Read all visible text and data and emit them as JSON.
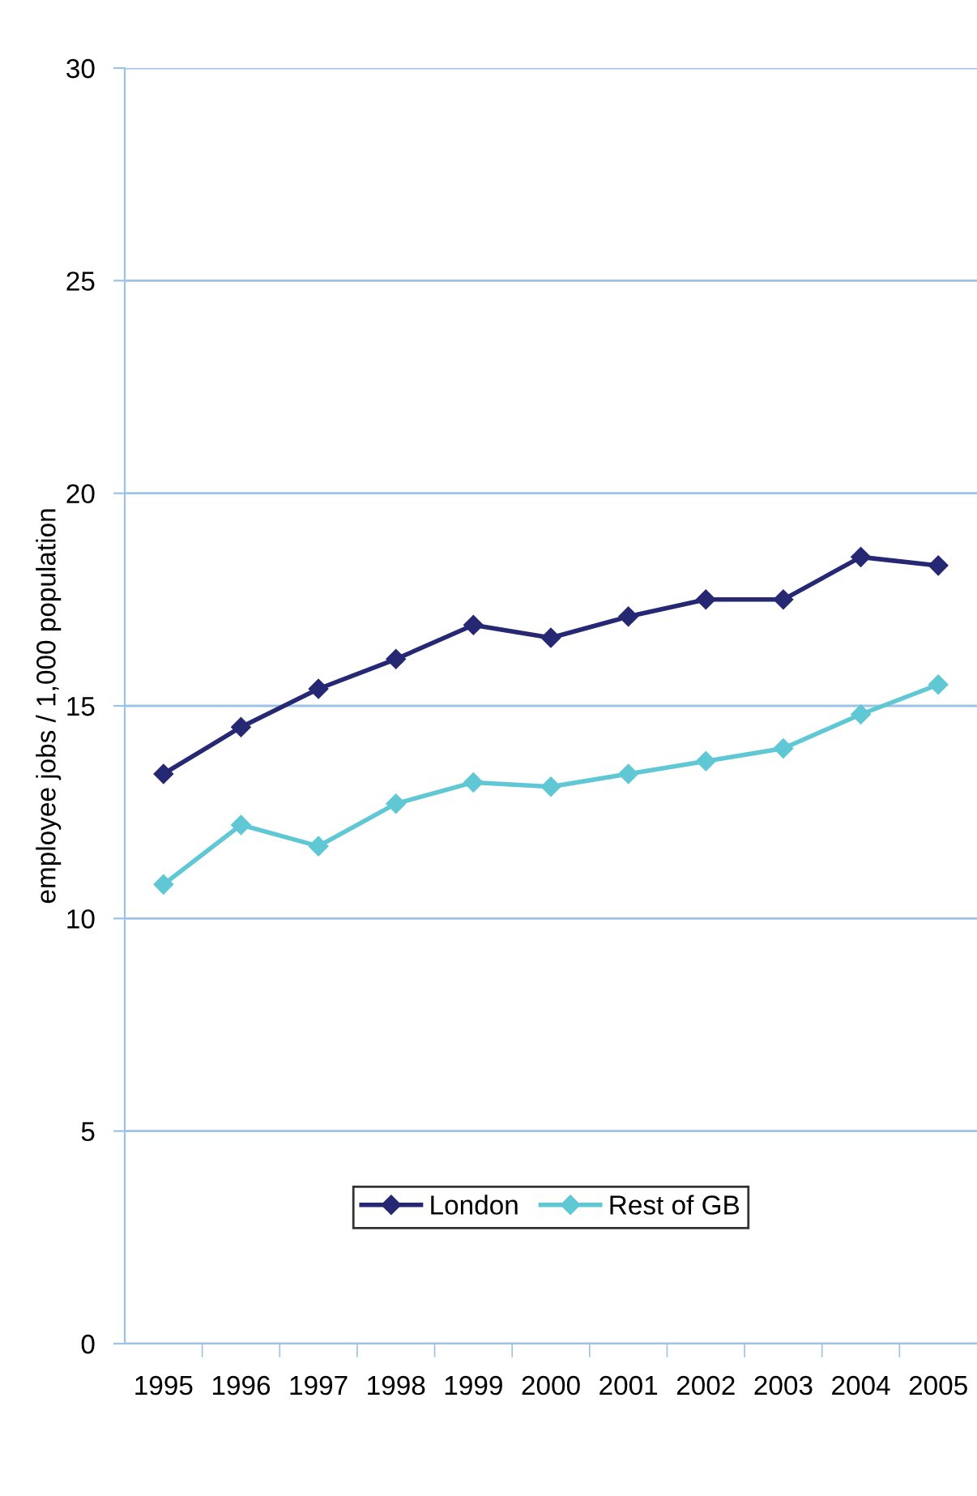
{
  "chart_data": {
    "type": "line",
    "ylabel": "employee jobs / 1,000 population",
    "categories": [
      "1995",
      "1996",
      "1997",
      "1998",
      "1999",
      "2000",
      "2001",
      "2002",
      "2003",
      "2004",
      "2005"
    ],
    "series": [
      {
        "name": "London",
        "color": "#262873",
        "values": [
          13.4,
          14.5,
          15.4,
          16.1,
          16.9,
          16.6,
          17.1,
          17.5,
          17.5,
          18.5,
          18.3
        ]
      },
      {
        "name": "Rest of GB",
        "color": "#5fc8d4",
        "values": [
          10.8,
          12.2,
          11.7,
          12.7,
          13.2,
          13.1,
          13.4,
          13.7,
          14.0,
          14.8,
          15.5
        ]
      }
    ],
    "ylim": [
      0,
      30
    ],
    "yticks": [
      0,
      5,
      10,
      15,
      20,
      25,
      30
    ],
    "grid": "y",
    "legend": "bottom",
    "marker": "diamond",
    "line_style": "solid"
  }
}
